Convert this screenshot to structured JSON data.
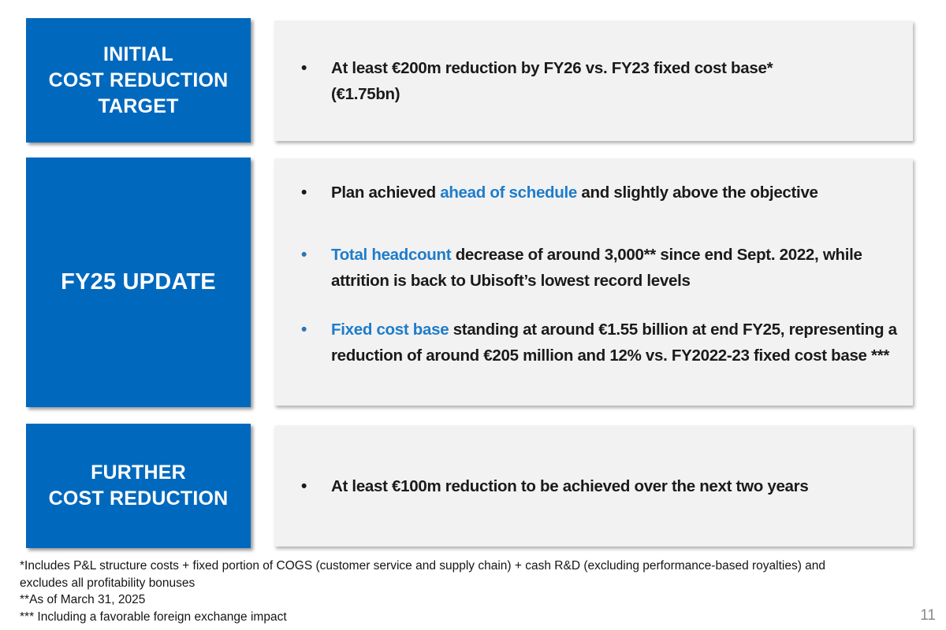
{
  "colors": {
    "box_blue": "#0069BE",
    "accent_text_blue": "#1E7CCB",
    "bullet_marker_blue": "#2E74B5",
    "panel_gray": "#F2F2F2",
    "body_text": "#1A1A1A",
    "page_number_gray": "#8C8C8C"
  },
  "rows": [
    {
      "header_lines": [
        "INITIAL",
        "COST REDUCTION",
        "TARGET"
      ],
      "bullets": [
        {
          "marker_color": "black",
          "segments": [
            {
              "text": "At least €200m reduction by FY26 vs. FY23 fixed cost base*",
              "style": "black"
            },
            {
              "text": "(€1.75bn)",
              "style": "black"
            }
          ]
        }
      ]
    },
    {
      "header_lines": [
        "FY25 UPDATE"
      ],
      "bullets": [
        {
          "marker_color": "black",
          "segments": [
            {
              "text": "Plan achieved ",
              "style": "black"
            },
            {
              "text": "ahead of schedule",
              "style": "blue"
            },
            {
              "text": " and slightly above the objective",
              "style": "black"
            }
          ]
        },
        {
          "marker_color": "blue",
          "segments": [
            {
              "text": "Total headcount",
              "style": "blue"
            },
            {
              "text": " decrease of around 3,000** since end Sept. 2022, while attrition is back to Ubisoft’s lowest record levels",
              "style": "black"
            }
          ]
        },
        {
          "marker_color": "blue",
          "segments": [
            {
              "text": "Fixed cost base",
              "style": "blue"
            },
            {
              "text": " standing at around €1.55 billion at end FY25, representing a reduction of around €205 million and 12% vs. FY2022-23 fixed cost base ***",
              "style": "black"
            }
          ]
        }
      ]
    },
    {
      "header_lines": [
        "FURTHER",
        "COST REDUCTION"
      ],
      "bullets": [
        {
          "marker_color": "black",
          "segments": [
            {
              "text": "At least €100m reduction to be achieved over the next two years",
              "style": "black"
            }
          ]
        }
      ]
    }
  ],
  "footnotes": [
    "*Includes P&L structure costs + fixed portion of COGS (customer service and supply chain) + cash R&D (excluding performance-based royalties) and excludes all profitability bonuses",
    "**As of March 31, 2025",
    "*** Including a favorable foreign exchange impact"
  ],
  "page": {
    "number": "11"
  }
}
